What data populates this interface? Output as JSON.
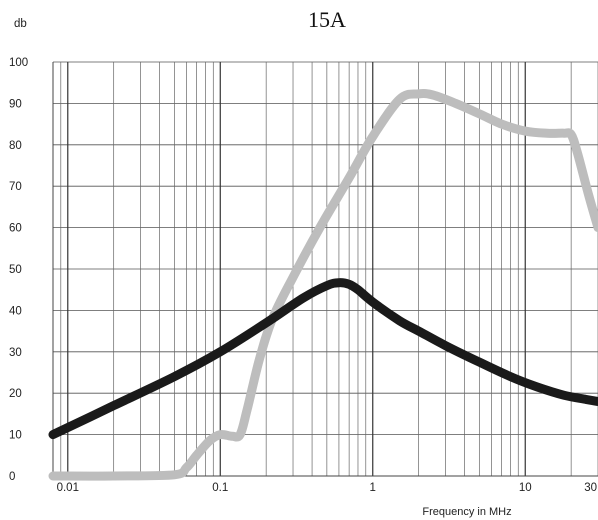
{
  "chart_data": {
    "type": "line",
    "title": "15A",
    "ylabel": "db",
    "xlabel": "Frequency in MHz",
    "x_scale": "log",
    "xlim": [
      0.008,
      30
    ],
    "ylim": [
      0,
      100
    ],
    "x_tick_values": [
      0.01,
      0.1,
      1,
      10,
      30
    ],
    "x_tick_labels": [
      "0.01",
      "0.1",
      "1",
      "10",
      "30"
    ],
    "y_tick_values": [
      0,
      10,
      20,
      30,
      40,
      50,
      60,
      70,
      80,
      90,
      100
    ],
    "y_tick_labels": [
      "0",
      "10",
      "20",
      "30",
      "40",
      "50",
      "60",
      "70",
      "80",
      "90",
      "100"
    ],
    "grid": true,
    "series": [
      {
        "color": "#bdbdbd",
        "points": [
          [
            0.008,
            0
          ],
          [
            0.02,
            0
          ],
          [
            0.05,
            0.3
          ],
          [
            0.06,
            2
          ],
          [
            0.07,
            5
          ],
          [
            0.085,
            8.5
          ],
          [
            0.1,
            10
          ],
          [
            0.12,
            9.6
          ],
          [
            0.135,
            10
          ],
          [
            0.15,
            16
          ],
          [
            0.18,
            28
          ],
          [
            0.22,
            38
          ],
          [
            0.3,
            48
          ],
          [
            0.45,
            60
          ],
          [
            0.7,
            72
          ],
          [
            1,
            82
          ],
          [
            1.5,
            91
          ],
          [
            2,
            92.3
          ],
          [
            2.5,
            92
          ],
          [
            3.5,
            90
          ],
          [
            5,
            87.5
          ],
          [
            7,
            85
          ],
          [
            10,
            83.3
          ],
          [
            14,
            82.8
          ],
          [
            18,
            82.8
          ],
          [
            20,
            82.5
          ],
          [
            22,
            78
          ],
          [
            26,
            68
          ],
          [
            30,
            60
          ]
        ]
      },
      {
        "color": "#1a1a1a",
        "points": [
          [
            0.008,
            10
          ],
          [
            0.02,
            17
          ],
          [
            0.05,
            24
          ],
          [
            0.1,
            30
          ],
          [
            0.2,
            37
          ],
          [
            0.35,
            43
          ],
          [
            0.5,
            46
          ],
          [
            0.6,
            46.7
          ],
          [
            0.7,
            46.3
          ],
          [
            0.8,
            45
          ],
          [
            1,
            42
          ],
          [
            1.5,
            37.5
          ],
          [
            2,
            35
          ],
          [
            3,
            31.5
          ],
          [
            5,
            27.5
          ],
          [
            8,
            24
          ],
          [
            12,
            21.5
          ],
          [
            18,
            19.5
          ],
          [
            25,
            18.5
          ],
          [
            30,
            18
          ]
        ]
      }
    ]
  }
}
